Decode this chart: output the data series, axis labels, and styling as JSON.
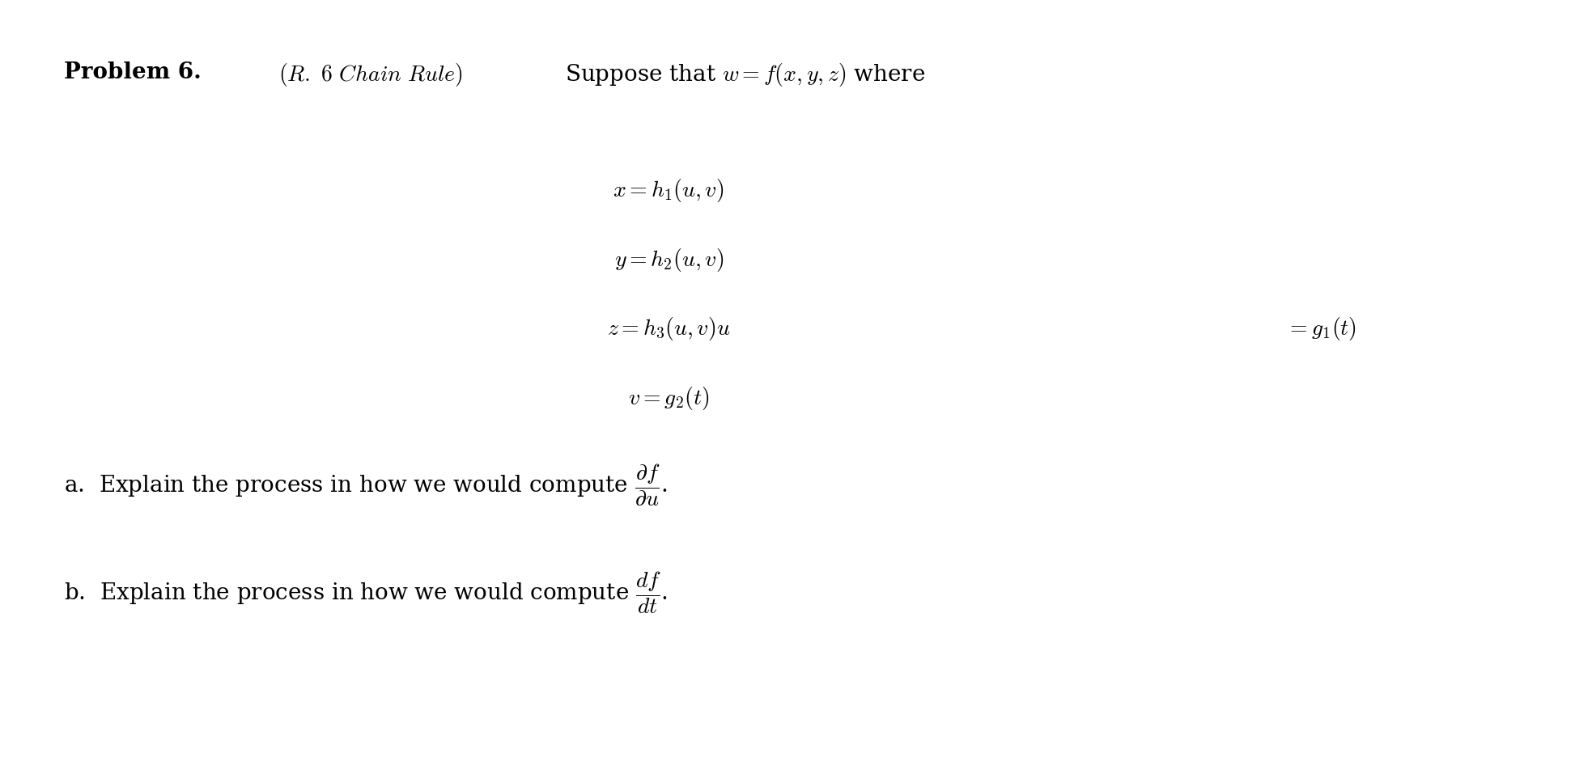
{
  "background_color": "#ffffff",
  "figsize": [
    19.67,
    9.52
  ],
  "dpi": 100,
  "title_line": "\\textbf{Problem 6.} $(R.~6~\\textit{Chain Rule})$ Suppose that $w = f(x, y, z)$ where",
  "equations": [
    "x = h_1(u, v)",
    "y = h_2(u, v)",
    "z = h_3(u, v)u",
    "v = g_2(t)"
  ],
  "right_eq": "= g_1(t)",
  "part_a": "a.  Explain the process in how we would compute $\\dfrac{\\partial f}{\\partial u}$.",
  "part_b": "b.  Explain the process in how we would compute $\\dfrac{df}{dt}$.",
  "text_color": "#000000",
  "font_size_main": 20,
  "font_size_eq": 20
}
